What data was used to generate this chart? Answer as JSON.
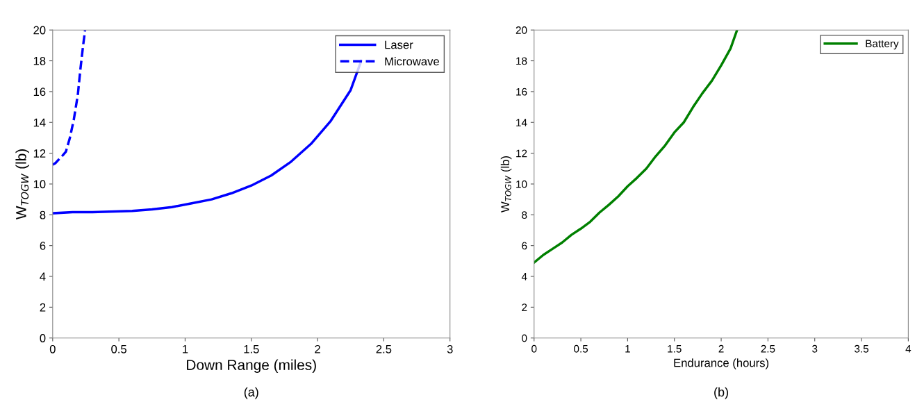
{
  "chart_data": [
    {
      "type": "line",
      "xlabel": "Down Range (miles)",
      "ylabel": "W$_{TOGW}$ (lb)",
      "xlim": [
        0,
        3
      ],
      "ylim": [
        0,
        20
      ],
      "xticks": [
        0,
        0.5,
        1,
        1.5,
        2,
        2.5,
        3
      ],
      "yticks": [
        0,
        2,
        4,
        6,
        8,
        10,
        12,
        14,
        16,
        18,
        20
      ],
      "grid": false,
      "legend": "top right",
      "annotations": [
        "(a)"
      ],
      "series": [
        {
          "name": "Laser",
          "color": "#0000ff",
          "line_style": "solid",
          "x": [
            0,
            0.15,
            0.3,
            0.6,
            0.75,
            0.9,
            1.05,
            1.2,
            1.35,
            1.5,
            1.65,
            1.8,
            1.95,
            2.1,
            2.25,
            2.33
          ],
          "values": [
            8.1,
            8.17,
            8.17,
            8.25,
            8.35,
            8.5,
            8.75,
            9.0,
            9.4,
            9.9,
            10.55,
            11.45,
            12.6,
            14.1,
            16.1,
            18.0
          ]
        },
        {
          "name": "Microwave",
          "color": "#0000ff",
          "line_style": "dashed",
          "x": [
            0,
            0.02,
            0.08,
            0.1,
            0.13,
            0.16,
            0.19,
            0.21,
            0.23,
            0.245
          ],
          "values": [
            11.25,
            11.35,
            11.9,
            12.1,
            13.0,
            14.2,
            15.8,
            17.5,
            19.0,
            20
          ]
        }
      ]
    },
    {
      "type": "line",
      "xlabel": "Endurance (hours)",
      "ylabel": "W$_{TOGW}$ (lb)",
      "xlim": [
        0,
        4
      ],
      "ylim": [
        0,
        20
      ],
      "xticks": [
        0,
        0.5,
        1,
        1.5,
        2,
        2.5,
        3,
        3.5,
        4
      ],
      "yticks": [
        0,
        2,
        4,
        6,
        8,
        10,
        12,
        14,
        16,
        18,
        20
      ],
      "grid": false,
      "legend": "top right",
      "annotations": [
        "(b)"
      ],
      "series": [
        {
          "name": "Battery",
          "color": "#008000",
          "line_style": "solid",
          "x": [
            0,
            0.1,
            0.2,
            0.3,
            0.4,
            0.5,
            0.6,
            0.7,
            0.8,
            0.9,
            1.0,
            1.1,
            1.2,
            1.3,
            1.4,
            1.5,
            1.6,
            1.7,
            1.8,
            1.9,
            2.0,
            2.1,
            2.17
          ],
          "values": [
            4.9,
            5.4,
            5.8,
            6.2,
            6.7,
            7.1,
            7.55,
            8.15,
            8.65,
            9.2,
            9.85,
            10.4,
            11.0,
            11.8,
            12.5,
            13.35,
            14.0,
            15.0,
            15.9,
            16.7,
            17.7,
            18.8,
            20
          ]
        }
      ]
    }
  ]
}
